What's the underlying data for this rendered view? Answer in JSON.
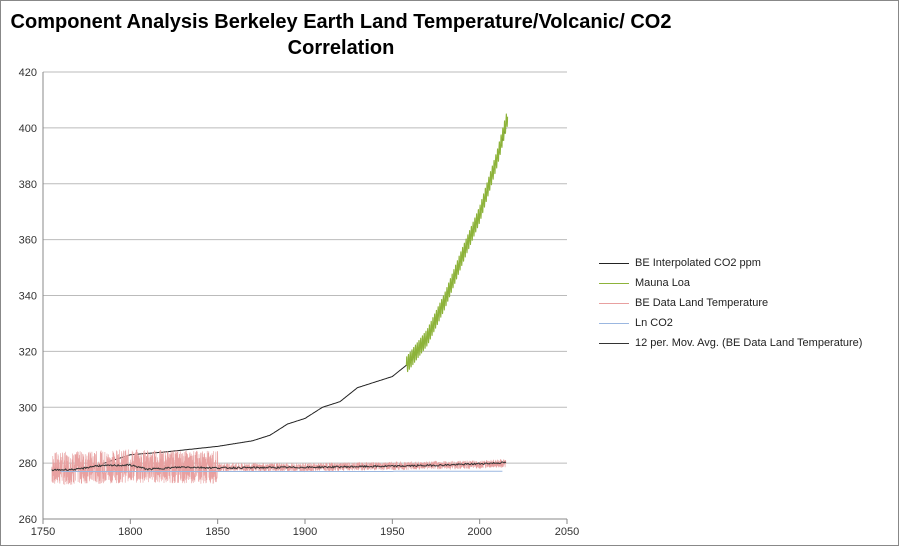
{
  "chart_data": {
    "type": "line",
    "title": "Component Analysis Berkeley Earth Land Temperature/Volcanic/ CO2 Correlation",
    "xlim": [
      1750,
      2050
    ],
    "ylim": [
      260,
      420
    ],
    "xticks": [
      1750,
      1800,
      1850,
      1900,
      1950,
      2000,
      2050
    ],
    "yticks": [
      260,
      280,
      300,
      320,
      340,
      360,
      380,
      400,
      420
    ],
    "grid": "horizontal",
    "legend_position": "right",
    "series": [
      {
        "name": "BE Interpolated CO2  ppm",
        "color": "#222222",
        "x": [
          1760,
          1780,
          1800,
          1820,
          1850,
          1870,
          1880,
          1890,
          1900,
          1910,
          1920,
          1930,
          1940,
          1950,
          1960,
          1970,
          1980,
          1990,
          2000,
          2010,
          2015
        ],
        "y": [
          277,
          279,
          283,
          284,
          286,
          288,
          290,
          294,
          296,
          300,
          302,
          307,
          309,
          311,
          316,
          325,
          338,
          354,
          369,
          389,
          400
        ]
      },
      {
        "name": "Mauna Loa",
        "color": "#8db33a",
        "x": [
          1958,
          1970,
          1980,
          1990,
          2000,
          2010,
          2016
        ],
        "y": [
          315,
          325,
          338,
          354,
          369,
          389,
          404
        ],
        "seasonal_amplitude": 3
      },
      {
        "name": "BE Data Land Temperature",
        "color": "#e8a0a0",
        "x": [
          1755,
          1800,
          1850,
          1900,
          1950,
          2000,
          2015
        ],
        "y": [
          278,
          279,
          278.5,
          278.5,
          279,
          279.5,
          280
        ],
        "noise": 3
      },
      {
        "name": "Ln CO2",
        "color": "#9bb7e0",
        "x": [
          1760,
          1950,
          1951,
          2013
        ],
        "y": [
          277,
          277,
          277.1,
          277.1
        ]
      },
      {
        "name": "12 per. Mov. Avg. (BE Data Land Temperature)",
        "color": "#333333",
        "x": [
          1755,
          1770,
          1780,
          1800,
          1810,
          1830,
          1850,
          1900,
          1950,
          1980,
          2000,
          2015
        ],
        "y": [
          277.5,
          277.8,
          279,
          279.3,
          277.8,
          278.6,
          278.3,
          278.5,
          278.9,
          279.3,
          279.8,
          280.2
        ]
      }
    ]
  }
}
